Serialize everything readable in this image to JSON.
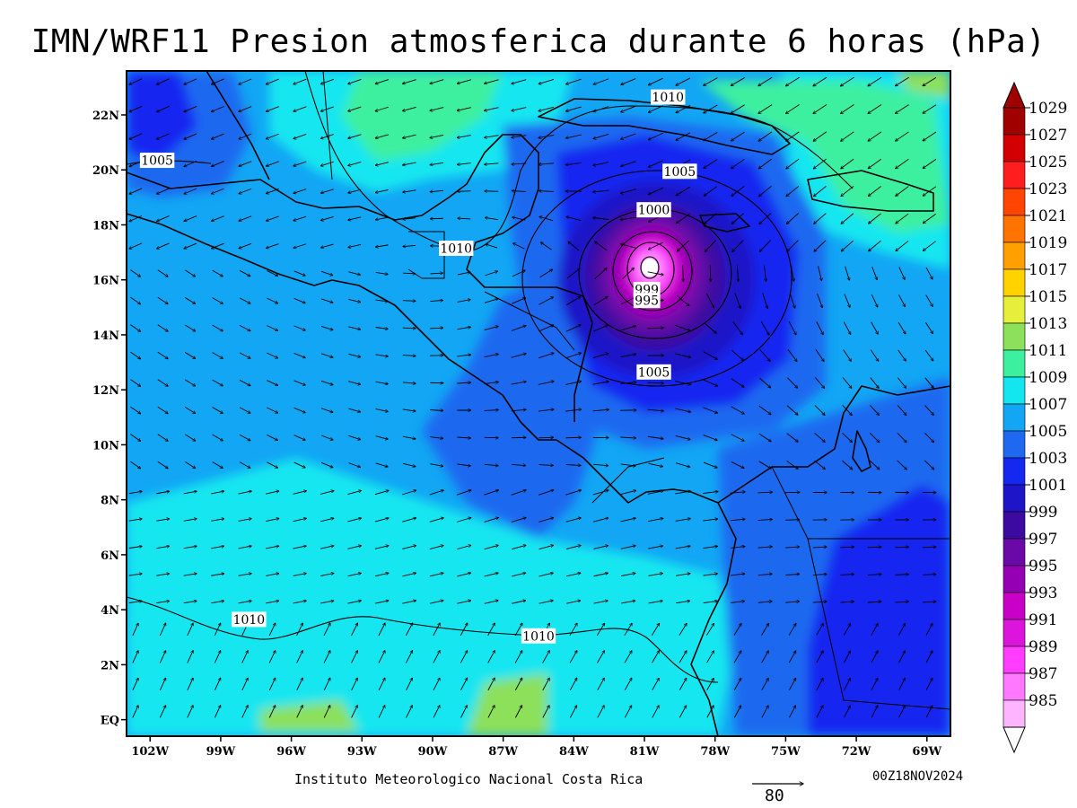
{
  "title": "IMN/WRF11 Presion atmosferica durante 6 horas (hPa)",
  "footer": {
    "credit": "Instituto Meteorologico Nacional Costa Rica",
    "datetime": "00Z18NOV2024",
    "wind_reference_vector": "80"
  },
  "map": {
    "lon_range": [
      -103,
      -68
    ],
    "lat_range": [
      -0.6,
      23.6
    ],
    "lon_ticks": [
      {
        "value": -102,
        "label": "102W"
      },
      {
        "value": -99,
        "label": "99W"
      },
      {
        "value": -96,
        "label": "96W"
      },
      {
        "value": -93,
        "label": "93W"
      },
      {
        "value": -90,
        "label": "90W"
      },
      {
        "value": -87,
        "label": "87W"
      },
      {
        "value": -84,
        "label": "84W"
      },
      {
        "value": -81,
        "label": "81W"
      },
      {
        "value": -78,
        "label": "78W"
      },
      {
        "value": -75,
        "label": "75W"
      },
      {
        "value": -72,
        "label": "72W"
      },
      {
        "value": -69,
        "label": "69W"
      }
    ],
    "lat_ticks": [
      {
        "value": 22,
        "label": "22N"
      },
      {
        "value": 20,
        "label": "20N"
      },
      {
        "value": 18,
        "label": "18N"
      },
      {
        "value": 16,
        "label": "16N"
      },
      {
        "value": 14,
        "label": "14N"
      },
      {
        "value": 12,
        "label": "12N"
      },
      {
        "value": 10,
        "label": "10N"
      },
      {
        "value": 8,
        "label": "8N"
      },
      {
        "value": 6,
        "label": "6N"
      },
      {
        "value": 4,
        "label": "4N"
      },
      {
        "value": 2,
        "label": "2N"
      },
      {
        "value": 0,
        "label": "EQ"
      }
    ],
    "low_center": {
      "lon": -80.6,
      "lat": 16.4
    },
    "contour_labels": [
      {
        "text": "1010",
        "lon": -80.0,
        "lat": 22.6
      },
      {
        "text": "1005",
        "lon": -101.7,
        "lat": 20.3
      },
      {
        "text": "1005",
        "lon": -79.5,
        "lat": 19.9
      },
      {
        "text": "1000",
        "lon": -80.6,
        "lat": 18.5
      },
      {
        "text": "1010",
        "lon": -89.0,
        "lat": 17.1
      },
      {
        "text": "999",
        "lon": -80.9,
        "lat": 15.6
      },
      {
        "text": "995",
        "lon": -80.9,
        "lat": 15.2
      },
      {
        "text": "1005",
        "lon": -80.6,
        "lat": 12.6
      },
      {
        "text": "1010",
        "lon": -97.8,
        "lat": 3.6
      },
      {
        "text": "1010",
        "lon": -85.5,
        "lat": 3.0
      }
    ]
  },
  "colorbar": {
    "levels": [
      "1029",
      "1027",
      "1025",
      "1023",
      "1021",
      "1019",
      "1017",
      "1015",
      "1013",
      "1011",
      "1009",
      "1007",
      "1005",
      "1003",
      "1001",
      "999",
      "997",
      "995",
      "993",
      "991",
      "989",
      "987",
      "985"
    ],
    "colors": [
      "#a00000",
      "#d20000",
      "#ff1e1e",
      "#ff4500",
      "#ff7300",
      "#ffa000",
      "#ffd200",
      "#e6f03c",
      "#8ce05a",
      "#3cf0a0",
      "#14e6f0",
      "#12a6f4",
      "#1e69f0",
      "#1428f0",
      "#1e14c8",
      "#3c0aa0",
      "#6a08a8",
      "#9600b4",
      "#c800c8",
      "#dc14dc",
      "#ff3cff",
      "#ff78ff",
      "#ffb4ff"
    ],
    "max_arrow_color": "#a00000",
    "min_arrow_color": "#ffffff"
  },
  "chart_data": {
    "type": "heatmap",
    "title": "IMN/WRF11 Presion atmosferica durante 6 horas (hPa)",
    "variable": "presion atmosferica (hPa)",
    "contour_levels": [
      1010,
      1005,
      1000,
      999,
      995
    ],
    "low_pressure_center": {
      "lon": -80.6,
      "lat": 16.4,
      "min_hpa": 986
    }
  }
}
